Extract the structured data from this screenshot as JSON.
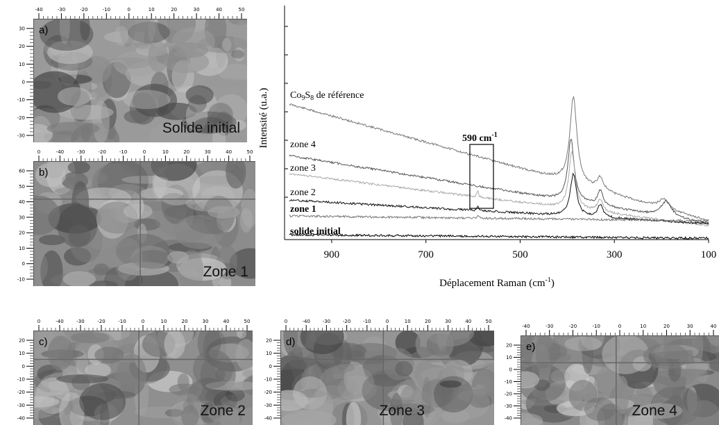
{
  "panels": [
    {
      "id": "a",
      "tag": "a)",
      "caption": "Solide initial",
      "xticks": [
        "-40",
        "-30",
        "-20",
        "-10",
        "0",
        "10",
        "20",
        "30",
        "40",
        "50"
      ],
      "yticks": [
        "30",
        "20",
        "10",
        "0",
        "-10",
        "-20",
        "-30"
      ],
      "crosshair": false,
      "tone": "#9a9a9a"
    },
    {
      "id": "b",
      "tag": "b)",
      "caption": "Zone 1",
      "xticks": [
        "0",
        "-40",
        "-30",
        "-20",
        "-10",
        "0",
        "10",
        "20",
        "30",
        "40",
        "50"
      ],
      "yticks": [
        "60",
        "50",
        "40",
        "30",
        "20",
        "10",
        "0",
        "-10"
      ],
      "crosshair": true,
      "tone": "#8c8c8c"
    },
    {
      "id": "c",
      "tag": "c)",
      "caption": "Zone 2",
      "xticks": [
        "0",
        "-40",
        "-30",
        "-20",
        "-10",
        "0",
        "10",
        "20",
        "30",
        "40",
        "50"
      ],
      "yticks": [
        "20",
        "10",
        "0",
        "-10",
        "-20",
        "-30",
        "-40"
      ],
      "crosshair": true,
      "tone": "#8f8f8f"
    },
    {
      "id": "d",
      "tag": "d)",
      "caption": "Zone 3",
      "xticks": [
        "0",
        "-40",
        "-30",
        "-20",
        "-10",
        "0",
        "10",
        "20",
        "30",
        "40",
        "50"
      ],
      "yticks": [
        "20",
        "10",
        "0",
        "-10",
        "-20",
        "-30",
        "-40"
      ],
      "crosshair": true,
      "tone": "#959595"
    },
    {
      "id": "e",
      "tag": "e)",
      "caption": "Zone 4",
      "xticks": [
        "-40",
        "-30",
        "-20",
        "-10",
        "0",
        "10",
        "20",
        "30",
        "40"
      ],
      "yticks": [
        "20",
        "10",
        "0",
        "-10",
        "-20",
        "-30",
        "-40"
      ],
      "crosshair": true,
      "tone": "#8a8a8a"
    }
  ],
  "chart_data": {
    "type": "line",
    "xlabel": "Déplacement Raman (cm",
    "xlabel_sup": "-1",
    "xlabel_end": ")",
    "ylabel": "Intensité (u.a.)",
    "xlim": [
      1000,
      100
    ],
    "xticks": [
      900,
      700,
      500,
      300,
      100
    ],
    "box_label": "590 cm",
    "box_label_sup": "-1",
    "series": [
      {
        "name": "Co9S8 de référence",
        "label_main": "Co",
        "label_sub1": "9",
        "label_mid": "S",
        "label_sub2": "8",
        "label_rest": " de référence",
        "color": "#777777",
        "bold": false
      },
      {
        "name": "zone 4",
        "color": "#555555",
        "bold": false
      },
      {
        "name": "zone 3",
        "color": "#aaaaaa",
        "bold": false
      },
      {
        "name": "zone 2",
        "color": "#111111",
        "bold": false
      },
      {
        "name": "zone 1",
        "color": "#777777",
        "bold": true
      },
      {
        "name": "solide initial",
        "color": "#000000",
        "bold": true
      }
    ]
  }
}
